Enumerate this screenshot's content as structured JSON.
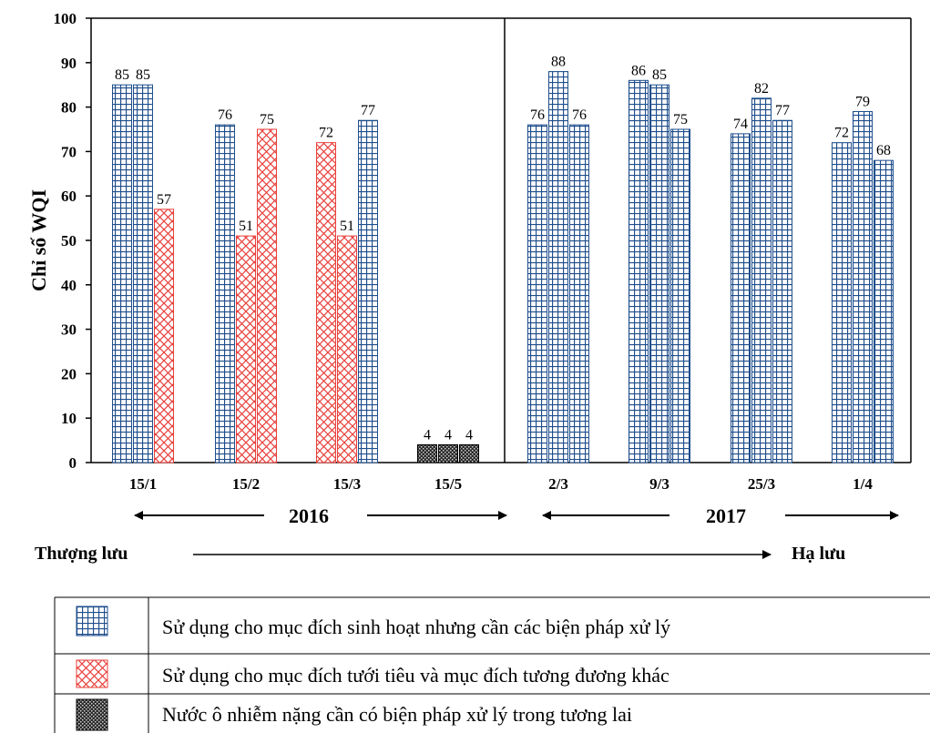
{
  "chart_data": {
    "type": "bar",
    "ylabel": "Chỉ số WQI",
    "xlabel": "",
    "ylim": [
      0,
      100
    ],
    "yticks": [
      0,
      10,
      20,
      30,
      40,
      50,
      60,
      70,
      80,
      90,
      100
    ],
    "groups": [
      {
        "label": "15/1",
        "values": [
          85,
          85,
          57
        ],
        "classes": [
          "domestic",
          "domestic",
          "irrigation"
        ]
      },
      {
        "label": "15/2",
        "values": [
          76,
          51,
          75
        ],
        "classes": [
          "domestic",
          "irrigation",
          "irrigation"
        ]
      },
      {
        "label": "15/3",
        "values": [
          72,
          51,
          77
        ],
        "classes": [
          "irrigation",
          "irrigation",
          "domestic"
        ]
      },
      {
        "label": "15/5",
        "values": [
          4,
          4,
          4
        ],
        "classes": [
          "polluted",
          "polluted",
          "polluted"
        ]
      },
      {
        "label": "2/3",
        "values": [
          76,
          88,
          76
        ],
        "classes": [
          "domestic",
          "domestic",
          "domestic"
        ]
      },
      {
        "label": "9/3",
        "values": [
          86,
          85,
          75
        ],
        "classes": [
          "domestic",
          "domestic",
          "domestic"
        ]
      },
      {
        "label": "25/3",
        "values": [
          74,
          82,
          77
        ],
        "classes": [
          "domestic",
          "domestic",
          "domestic"
        ]
      },
      {
        "label": "1/4",
        "values": [
          72,
          79,
          68
        ],
        "classes": [
          "domestic",
          "domestic",
          "domestic"
        ]
      }
    ],
    "periods": [
      {
        "label": "2016",
        "groups": [
          "15/1",
          "15/2",
          "15/3",
          "15/5"
        ]
      },
      {
        "label": "2017",
        "groups": [
          "2/3",
          "9/3",
          "25/3",
          "1/4"
        ]
      }
    ],
    "flow": {
      "start": "Thượng lưu",
      "end": "Hạ lưu"
    },
    "legend": [
      {
        "key": "domestic",
        "label": "Sử dụng cho mục đích sinh hoạt nhưng cần các biện pháp xử lý"
      },
      {
        "key": "irrigation",
        "label": "Sử dụng cho mục đích tưới tiêu và mục đích tương đương khác"
      },
      {
        "key": "polluted",
        "label": "Nước ô nhiễm nặng cần có biện pháp xử lý trong tương lai"
      }
    ],
    "colors": {
      "domestic_fill": "#ffffff",
      "domestic_grid": "#1f4e8c",
      "irrigation_fill": "#ffffff",
      "irrigation_grid": "#e8413c",
      "polluted_fill": "#2a2a2a",
      "polluted_dots": "#cfcfcf"
    },
    "grid": false,
    "legend_position": "bottom"
  }
}
